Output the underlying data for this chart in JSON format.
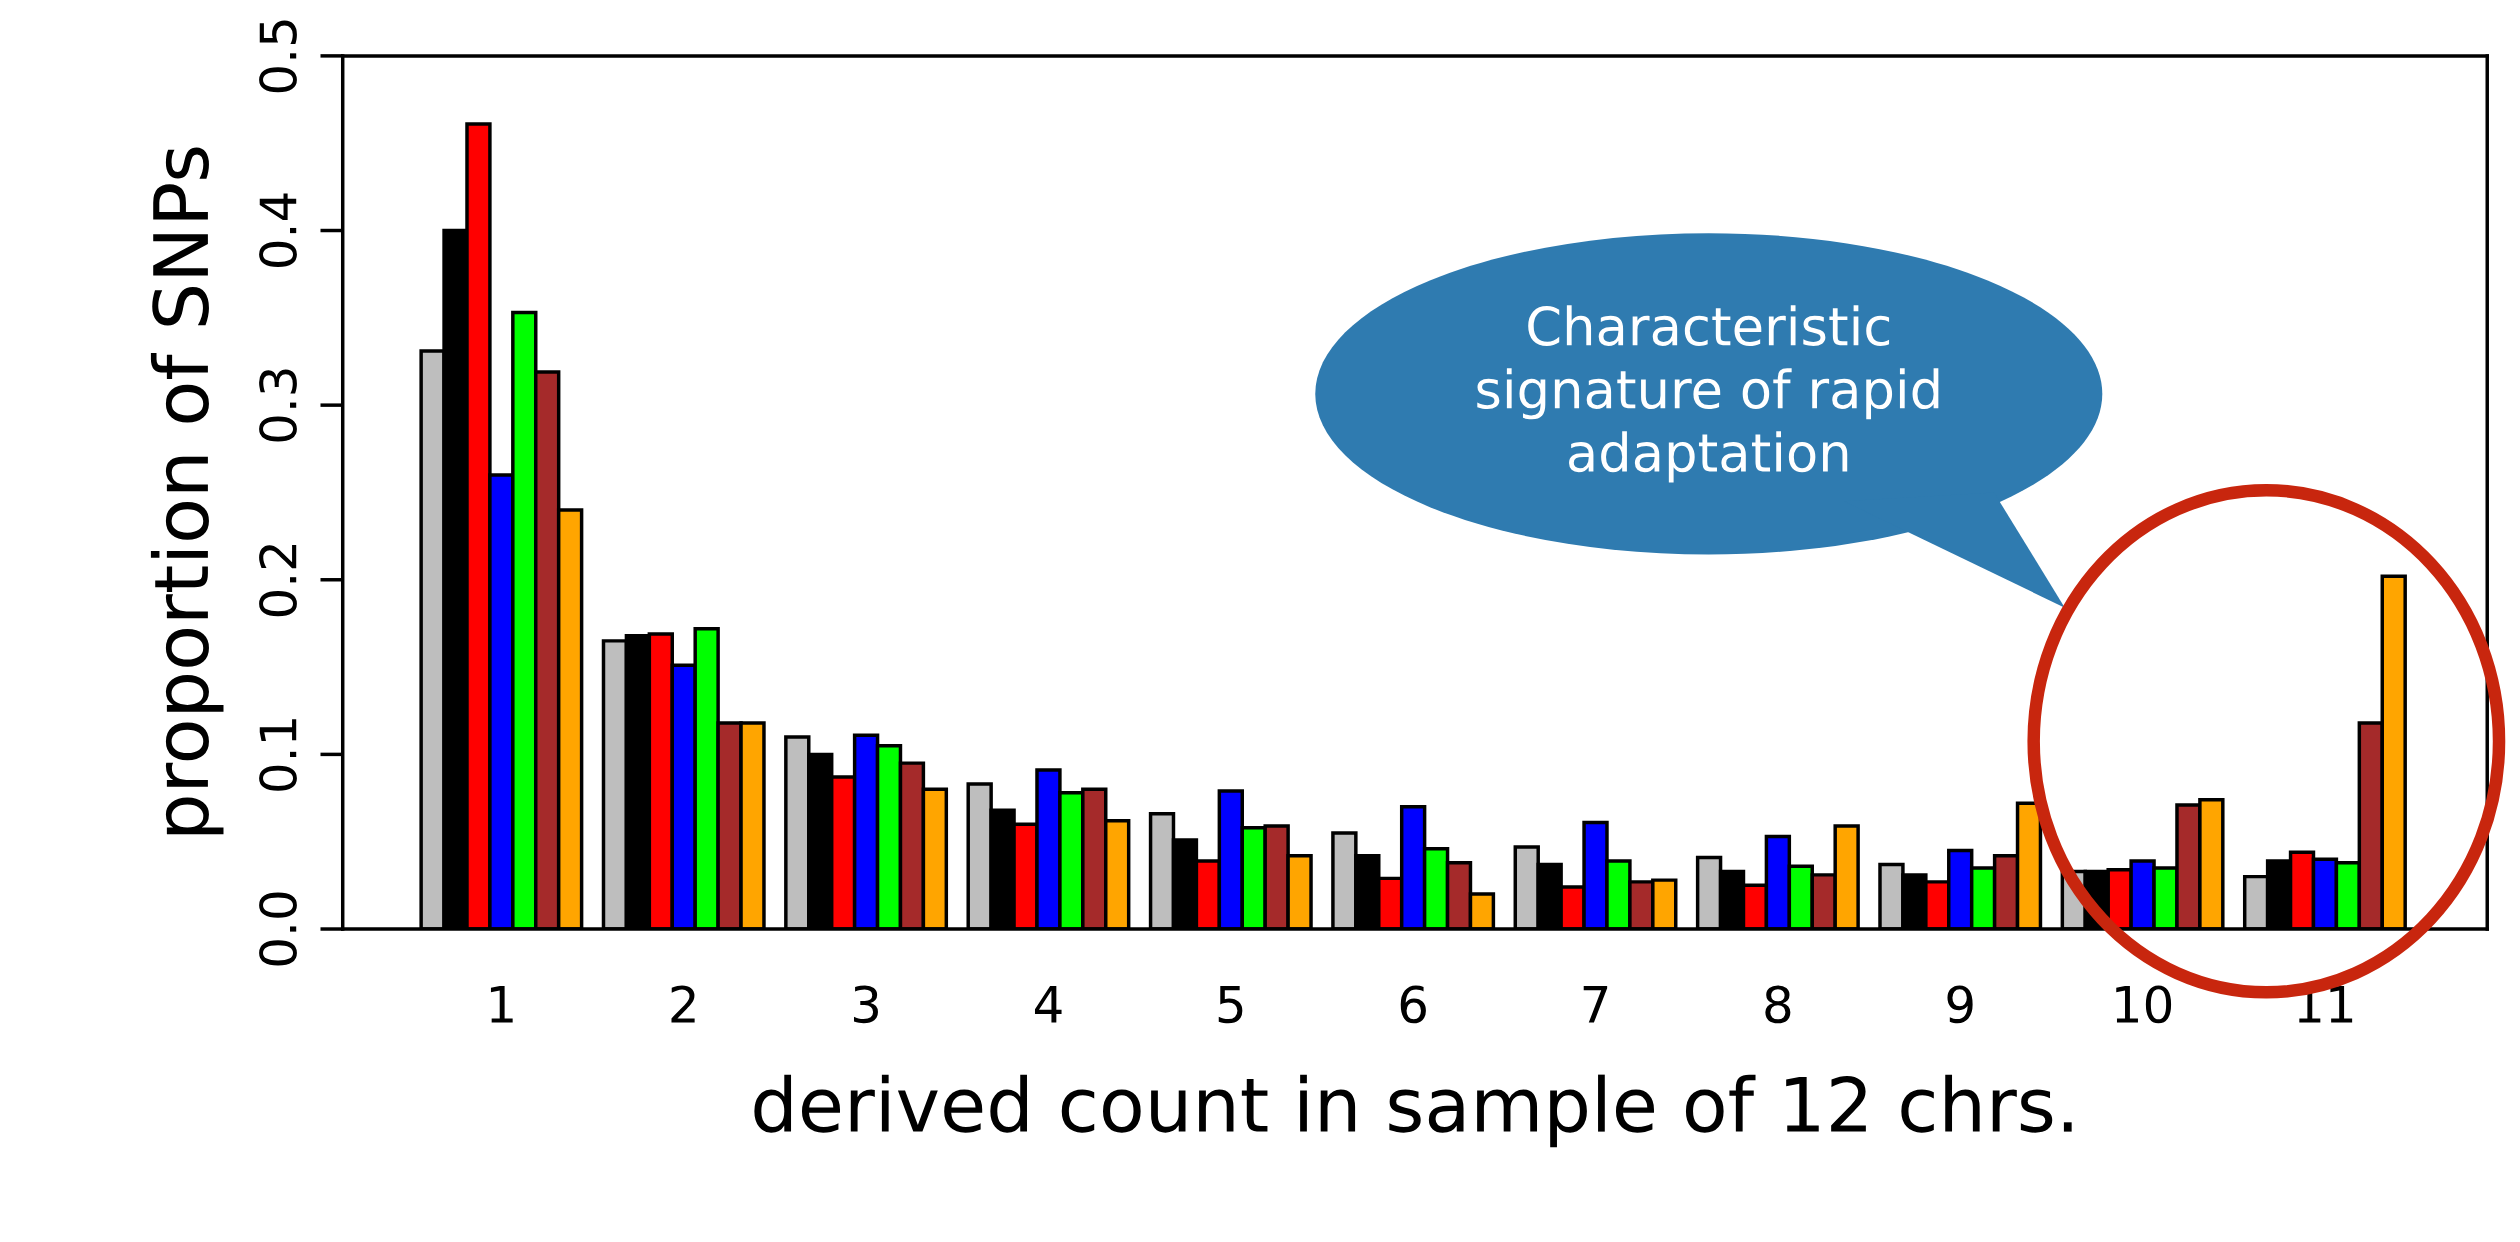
{
  "chart_data": {
    "type": "bar",
    "xlabel": "derived count in sample of 12 chrs.",
    "ylabel": "proportion of SNPs",
    "categories": [
      "1",
      "2",
      "3",
      "4",
      "5",
      "6",
      "7",
      "8",
      "9",
      "10",
      "11"
    ],
    "series": [
      {
        "color": "#bebebe",
        "values": [
          0.331,
          0.165,
          0.11,
          0.083,
          0.066,
          0.055,
          0.047,
          0.041,
          0.037,
          0.033,
          0.03
        ]
      },
      {
        "color": "#000000",
        "values": [
          0.4,
          0.168,
          0.1,
          0.068,
          0.051,
          0.042,
          0.037,
          0.033,
          0.031,
          0.033,
          0.039
        ]
      },
      {
        "color": "#ff0000",
        "values": [
          0.461,
          0.169,
          0.087,
          0.06,
          0.039,
          0.029,
          0.024,
          0.025,
          0.027,
          0.034,
          0.044
        ]
      },
      {
        "color": "#0000ff",
        "values": [
          0.26,
          0.151,
          0.111,
          0.091,
          0.079,
          0.07,
          0.061,
          0.053,
          0.045,
          0.039,
          0.04
        ]
      },
      {
        "color": "#00ff00",
        "values": [
          0.353,
          0.172,
          0.105,
          0.078,
          0.058,
          0.046,
          0.039,
          0.036,
          0.035,
          0.035,
          0.038
        ]
      },
      {
        "color": "#a52a2a",
        "values": [
          0.319,
          0.118,
          0.095,
          0.08,
          0.059,
          0.038,
          0.027,
          0.031,
          0.042,
          0.071,
          0.118
        ]
      },
      {
        "color": "#ffa500",
        "values": [
          0.24,
          0.118,
          0.08,
          0.062,
          0.042,
          0.02,
          0.028,
          0.059,
          0.072,
          0.074,
          0.202
        ]
      }
    ],
    "ylim": [
      0,
      0.5
    ],
    "yticks": [
      {
        "value": 0,
        "label": "0.0"
      },
      0.1,
      0.2,
      0.3,
      0.4,
      0.5
    ],
    "annotations": [
      "Characteristic\nsignature of rapid\nadaptation"
    ],
    "grid": false,
    "legend": false
  }
}
